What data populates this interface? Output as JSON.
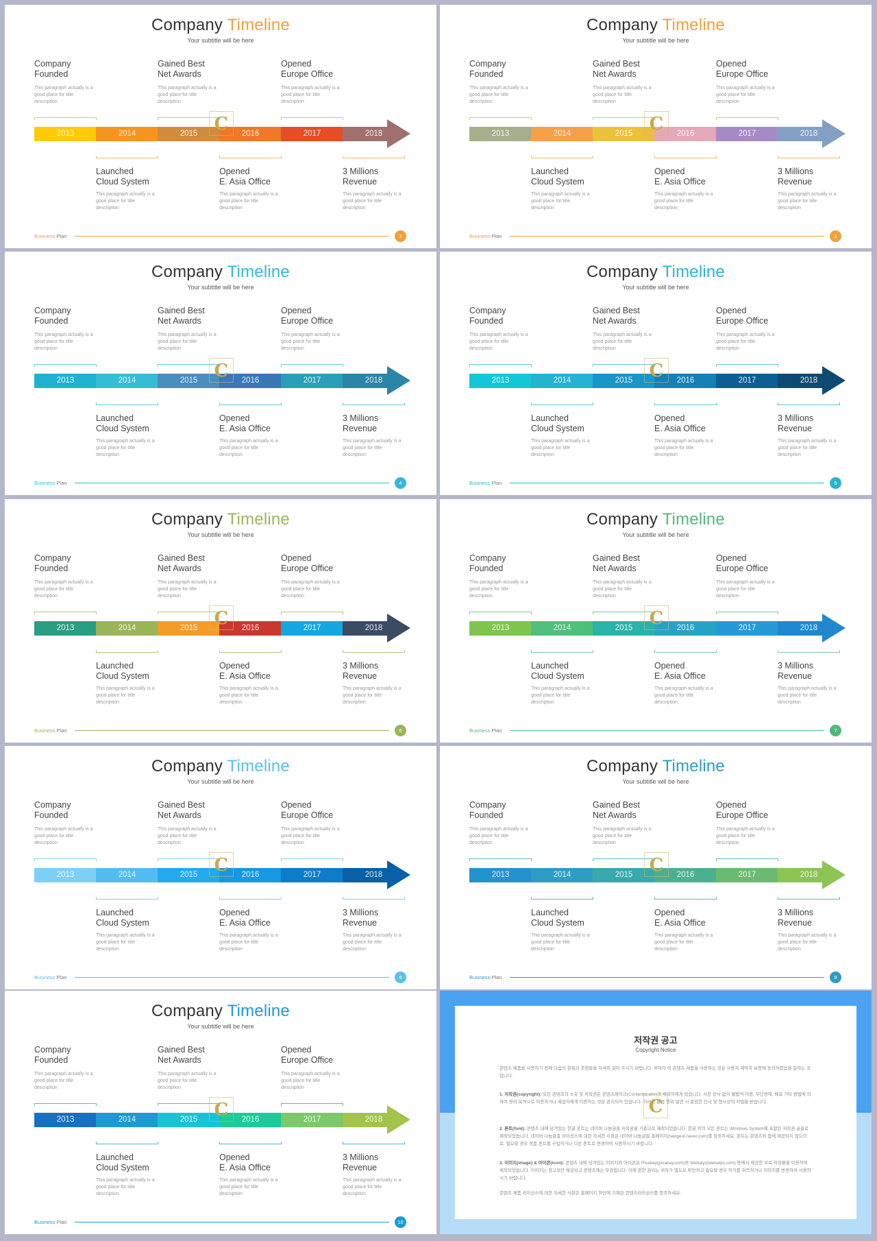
{
  "slides": [
    {
      "title_main": "Company",
      "title_accent": "Timeline",
      "accent": "#f0a13a",
      "seg_colors": [
        "#ffcb05",
        "#f7941d",
        "#d28c3c",
        "#f07826",
        "#e84c25",
        "#a0706c"
      ],
      "page": "2",
      "foot_brand": "Business",
      "foot_plan": "Plan"
    },
    {
      "title_main": "Company",
      "title_accent": "Timeline",
      "accent": "#f0a13a",
      "seg_colors": [
        "#a7ae8c",
        "#f5a14a",
        "#ecc13a",
        "#e4a9b6",
        "#a68ac4",
        "#849fc4"
      ],
      "page": "3",
      "foot_brand": "Business",
      "foot_plan": "Plan"
    },
    {
      "title_main": "Company",
      "title_accent": "Timeline",
      "accent": "#34b8d7",
      "seg_colors": [
        "#1fb2d0",
        "#35bcd6",
        "#4a8dbf",
        "#3a77b6",
        "#2a9fb8",
        "#2a85a8"
      ],
      "page": "4",
      "foot_brand": "Business",
      "foot_plan": "Plan"
    },
    {
      "title_main": "Company",
      "title_accent": "Timeline",
      "accent": "#2ab4cf",
      "seg_colors": [
        "#13c7d6",
        "#22b4d1",
        "#1a95c8",
        "#1580b8",
        "#0c5f93",
        "#0d4a73"
      ],
      "page": "5",
      "foot_brand": "Business",
      "foot_plan": "Plan"
    },
    {
      "title_main": "Company",
      "title_accent": "Timeline",
      "accent": "#9bb559",
      "seg_colors": [
        "#2a9d82",
        "#9bb559",
        "#f39c2a",
        "#c8382f",
        "#14a7e0",
        "#3b4b66"
      ],
      "page": "6",
      "foot_brand": "Business",
      "foot_plan": "Plan"
    },
    {
      "title_main": "Company",
      "title_accent": "Timeline",
      "accent": "#52b87a",
      "seg_colors": [
        "#7ec64e",
        "#4fbf7b",
        "#2ab3a8",
        "#28a3c4",
        "#2699d4",
        "#2188cd"
      ],
      "page": "7",
      "foot_brand": "Business",
      "foot_plan": "Plan"
    },
    {
      "title_main": "Company",
      "title_accent": "Timeline",
      "accent": "#5bbfe8",
      "seg_colors": [
        "#7dcff6",
        "#53bdf2",
        "#23a9ef",
        "#1698e4",
        "#0c7ccb",
        "#0760a8"
      ],
      "page": "8",
      "foot_brand": "Business",
      "foot_plan": "Plan"
    },
    {
      "title_main": "Company",
      "title_accent": "Timeline",
      "accent": "#2d9cc0",
      "seg_colors": [
        "#2393cf",
        "#2d9dc5",
        "#38a9ad",
        "#4bb08f",
        "#6bba71",
        "#8cc455"
      ],
      "page": "9",
      "foot_brand": "Business",
      "foot_plan": "Plan"
    },
    {
      "title_main": "Company",
      "title_accent": "Timeline",
      "accent": "#1a9bd7",
      "seg_colors": [
        "#1671c2",
        "#1c9ad1",
        "#17c4d6",
        "#1bcb98",
        "#7bc96a",
        "#a3c44a"
      ],
      "page": "10",
      "foot_brand": "Business",
      "foot_plan": "Plan"
    }
  ],
  "common": {
    "subtitle": "Your subtitle will be here",
    "years": [
      "2013",
      "2014",
      "2015",
      "2016",
      "2017",
      "2018"
    ],
    "top_events": [
      {
        "line1": "Company",
        "line2": "Founded"
      },
      {
        "line1": "Gained Best",
        "line2": "Net Awards"
      },
      {
        "line1": "Opened",
        "line2": "Europe Office"
      }
    ],
    "bottom_events": [
      {
        "line1": "Launched",
        "line2": "Cloud System"
      },
      {
        "line1": "Opened",
        "line2": "E. Asia Office"
      },
      {
        "line1": "3 Millions",
        "line2": "Revenue"
      }
    ],
    "desc_line1": "This paragraph  actually is a",
    "desc_line2": "good place for title",
    "desc_line3": "description",
    "watermark": "C"
  },
  "copyright": {
    "title": "저작권 공고",
    "subtitle": "Copyright Notice",
    "intro": "콘텐츠 제품을 사용하기 전에 다음의 항목과 조항들을 자세히 읽어 주시기 바랍니다. 귀하가 이 콘텐츠 제품을 사용하는 것은 사용자 계약과 보증에 동의하였음을 말하는 것입니다.",
    "p1_head": "1. 저작권(copyright):",
    "p1": "모든 콘텐츠의 소유 및 저작권은 콘텐츠레이크(ContentsLake)과 제작자에게 있습니다. 사전 승낙 없이 불법적 이용, 무단전재, 배포 기타 방법에 의하여 영리 목적으로 이용하거나 제삼자에게 이용하는 것은 금지되어 있습니다. 이러한 불법 행위 발견 시 준엄한 민사 및 형사상의 처벌을 받습니다.",
    "p2_head": "2. 폰트(font):",
    "p2": "콘텐츠 내에 담겨있는 한글 폰트는 네이버 나눔글꼴 저작권을 기준으로 제작되었습니다. 한글 외의 모든 폰트는 Windows System에 포함된 저작권 글꼴로 제작되었습니다. 네이버 나눔글꼴 라이선스에 대한 자세한 사항은 네이버 나눔글꼴 홈페이지(hangeul.naver.com)를 참조하세요. 폰트는 콘텐츠와 함께 제공되지 않으므로, 필요할 경우 정품 폰트를 구입하거나 다른 폰트로 변경하여 사용하시기 바랍니다.",
    "p3_head": "3. 이미지(image) & 아이콘(icon):",
    "p3": "콘텐츠 내에 담겨있는 이미지와 아이콘은 Pixabay(pixabay.com)와 Webalys(webalys.com) 등에서 제공한 무료 저작물을 이용하여 제작되었습니다. 이미지는 참고모만 제공되고 콘텐츠에는 무관합니다. 이에 관한 권리는 귀하가 별도로 확인하고 필요할 경우 허가를 취득하거나 이미지를 변경하여 사용하시기 바랍니다.",
    "outro": "콘텐츠 제품 라이선스에 대한 자세한 사항은 홈페이지 하단에 기재된 콘텐츠라이선스를 참조하세요."
  }
}
